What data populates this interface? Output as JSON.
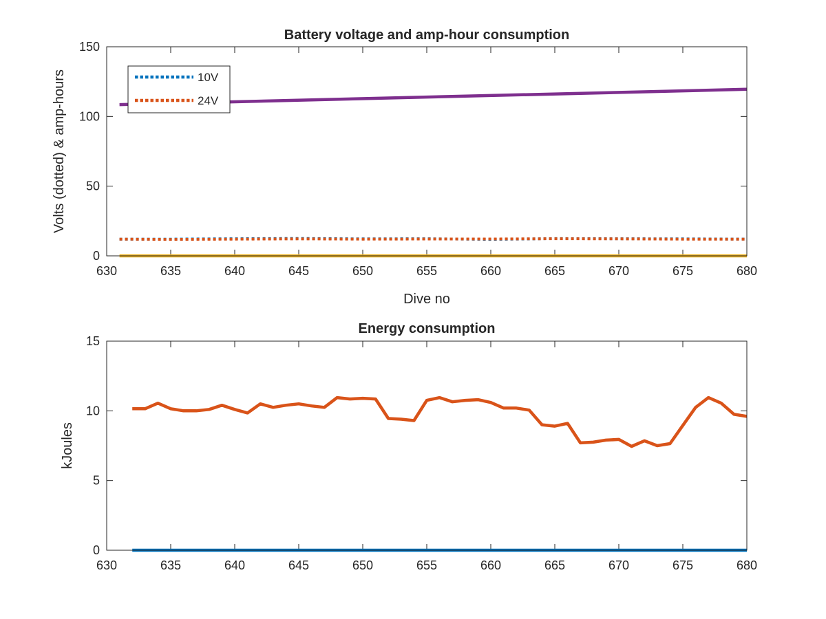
{
  "chart_data": [
    {
      "type": "line",
      "title": "Battery voltage and amp-hour consumption",
      "xlabel": "Dive no",
      "ylabel": "Volts (dotted) & amp-hours",
      "xlim": [
        630,
        680
      ],
      "ylim": [
        0,
        150
      ],
      "xticks": [
        630,
        635,
        640,
        645,
        650,
        655,
        660,
        665,
        670,
        675,
        680
      ],
      "yticks": [
        0,
        50,
        100,
        150
      ],
      "legend": {
        "position": "top-left",
        "entries": [
          "10V",
          "24V"
        ]
      },
      "series": [
        {
          "name": "10V",
          "color": "#0072BD",
          "style": "dotted",
          "x": [
            631,
            635,
            640,
            645,
            650,
            655,
            660,
            665,
            670,
            675,
            680
          ],
          "y": [
            12,
            12,
            12.3,
            12.5,
            12.2,
            12.3,
            11.8,
            12.4,
            12.3,
            12.2,
            12
          ]
        },
        {
          "name": "24V",
          "color": "#D95319",
          "style": "dotted",
          "x": [
            631,
            635,
            640,
            645,
            650,
            655,
            660,
            665,
            670,
            675,
            680
          ],
          "y": [
            12,
            11.8,
            12,
            12.2,
            12,
            12.1,
            12.1,
            12.3,
            12.2,
            12,
            12
          ]
        },
        {
          "color": "#7E2F8E",
          "style": "solid",
          "x": [
            631,
            680
          ],
          "y": [
            108.5,
            119.5
          ]
        },
        {
          "color": "#EDB120",
          "style": "solid",
          "x": [
            631,
            680
          ],
          "y": [
            0,
            0
          ]
        }
      ]
    },
    {
      "type": "line",
      "title": "Energy consumption",
      "xlabel": "",
      "ylabel": "kJoules",
      "xlim": [
        630,
        680
      ],
      "ylim": [
        0,
        15
      ],
      "xticks": [
        630,
        635,
        640,
        645,
        650,
        655,
        660,
        665,
        670,
        675,
        680
      ],
      "yticks": [
        0,
        5,
        10,
        15
      ],
      "series": [
        {
          "color": "#0072BD",
          "style": "solid",
          "x": [
            632,
            680
          ],
          "y": [
            0,
            0
          ]
        },
        {
          "color": "#D95319",
          "style": "solid",
          "x": [
            632,
            633,
            634,
            635,
            636,
            637,
            638,
            639,
            640,
            641,
            642,
            643,
            644,
            645,
            646,
            647,
            648,
            649,
            650,
            651,
            652,
            653,
            654,
            655,
            656,
            657,
            658,
            659,
            660,
            661,
            662,
            663,
            664,
            665,
            666,
            667,
            668,
            669,
            670,
            671,
            672,
            673,
            674,
            675,
            676,
            677,
            678,
            679,
            680
          ],
          "y": [
            10.15,
            10.15,
            10.55,
            10.15,
            10.0,
            10.0,
            10.1,
            10.4,
            10.1,
            9.85,
            10.5,
            10.25,
            10.4,
            10.5,
            10.35,
            10.25,
            10.95,
            10.85,
            10.9,
            10.85,
            9.45,
            9.4,
            9.3,
            10.75,
            10.95,
            10.65,
            10.75,
            10.8,
            10.6,
            10.2,
            10.2,
            10.05,
            9.0,
            8.9,
            9.1,
            7.7,
            7.75,
            7.9,
            7.95,
            7.45,
            7.85,
            7.5,
            7.65,
            8.95,
            10.25,
            10.95,
            10.55,
            9.75,
            9.6
          ]
        }
      ]
    }
  ]
}
